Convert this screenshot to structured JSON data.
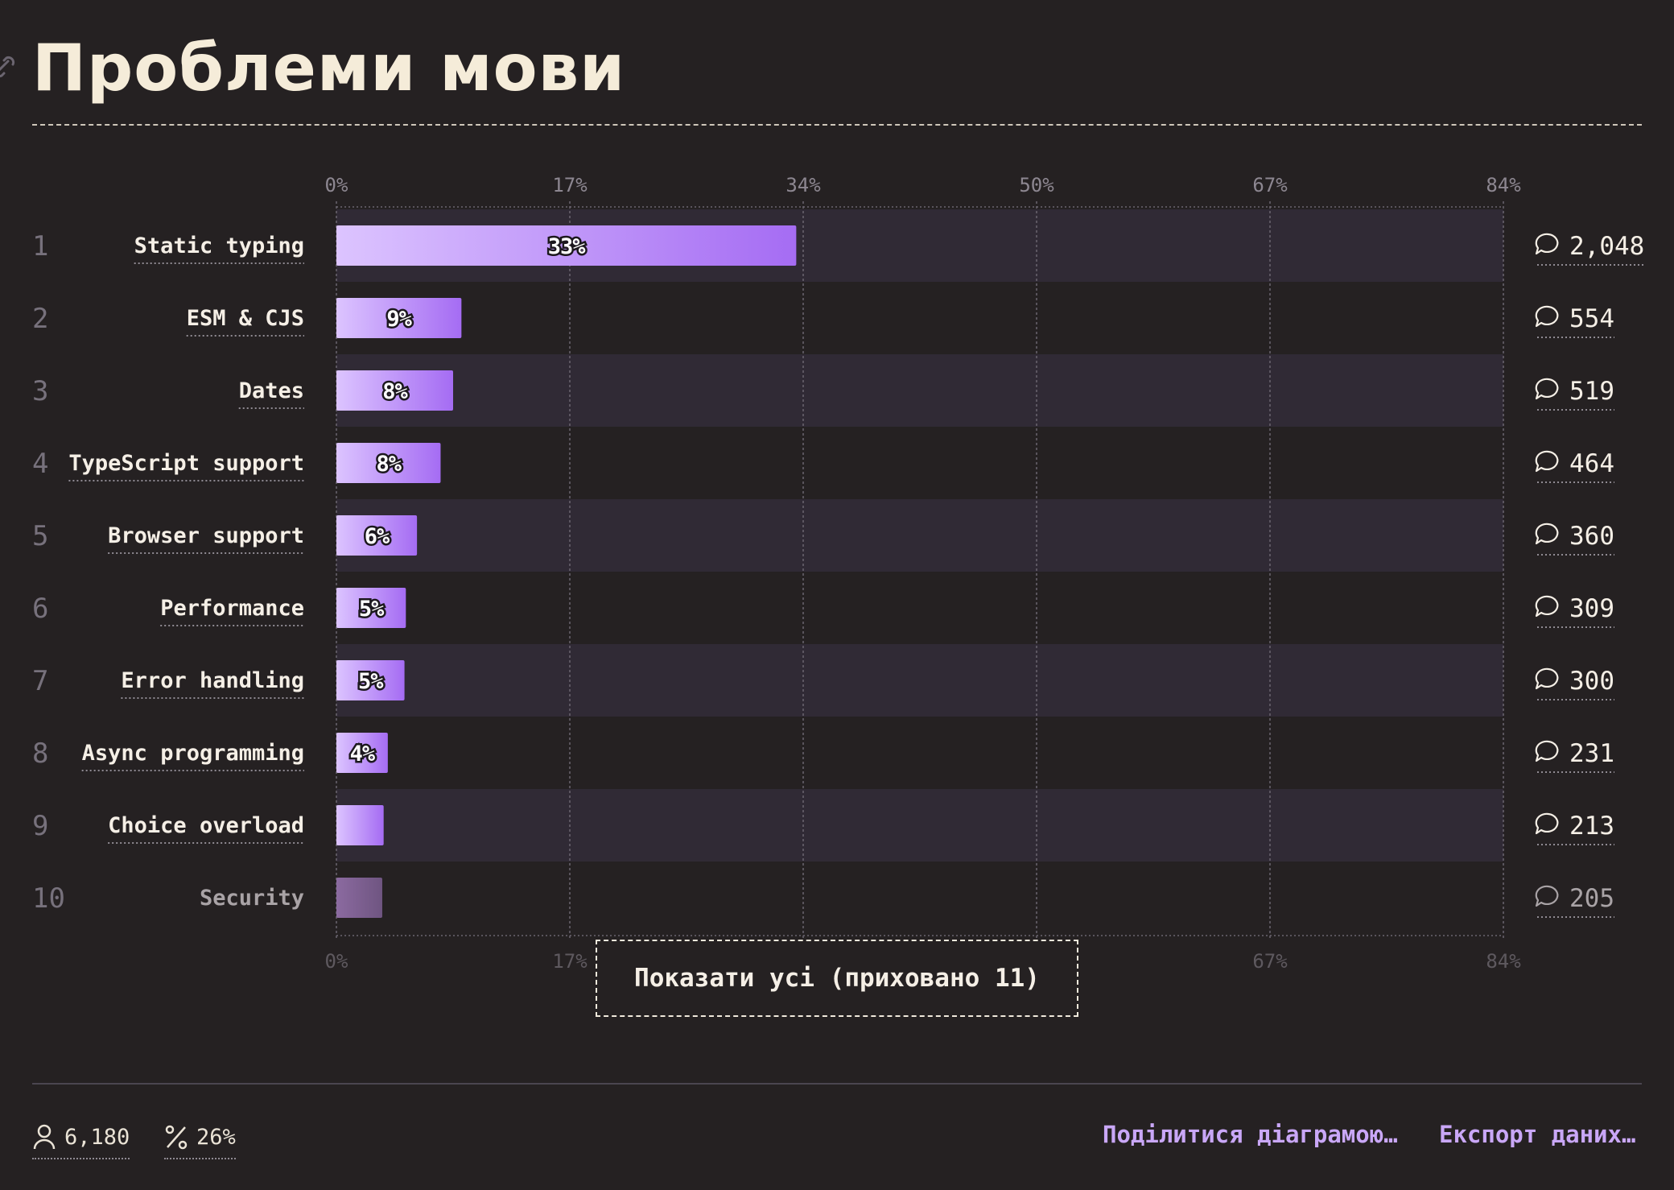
{
  "header": {
    "title": "Проблеми мови"
  },
  "chart_data": {
    "type": "bar",
    "orientation": "horizontal",
    "title": "Проблеми мови",
    "xlim": [
      0,
      84
    ],
    "ticks": [
      "0%",
      "17%",
      "34%",
      "50%",
      "67%",
      "84%"
    ],
    "tick_values": [
      0,
      16.8,
      33.6,
      50.4,
      67.2,
      84
    ],
    "categories": [
      "Static typing",
      "ESM & CJS",
      "Dates",
      "TypeScript support",
      "Browser support",
      "Performance",
      "Error handling",
      "Async programming",
      "Choice overload",
      "Security"
    ],
    "ranks": [
      "1",
      "2",
      "3",
      "4",
      "5",
      "6",
      "7",
      "8",
      "9",
      "10"
    ],
    "values": [
      33.1,
      9.0,
      8.4,
      7.5,
      5.8,
      5.0,
      4.9,
      3.7,
      3.4,
      3.3
    ],
    "value_labels": [
      "33%",
      "9%",
      "8%",
      "8%",
      "6%",
      "5%",
      "5%",
      "4%",
      "",
      ""
    ],
    "counts": [
      "2,048",
      "554",
      "519",
      "464",
      "360",
      "309",
      "300",
      "231",
      "213",
      "205"
    ],
    "grid": true,
    "colors": {
      "bar_start": "#dcc4ff",
      "bar_end": "#a56cf3",
      "bar_dim_start": "#8b6aa0",
      "bar_dim_end": "#6f5581",
      "row_band": "#302a35",
      "grid": "#6b6570"
    }
  },
  "show_all_button": {
    "label": "Показати усі (приховано 11)"
  },
  "footer": {
    "respondents": "6,180",
    "percent": "26%",
    "share_label": "Поділитися діаграмою…",
    "export_label": "Експорт даних…"
  }
}
